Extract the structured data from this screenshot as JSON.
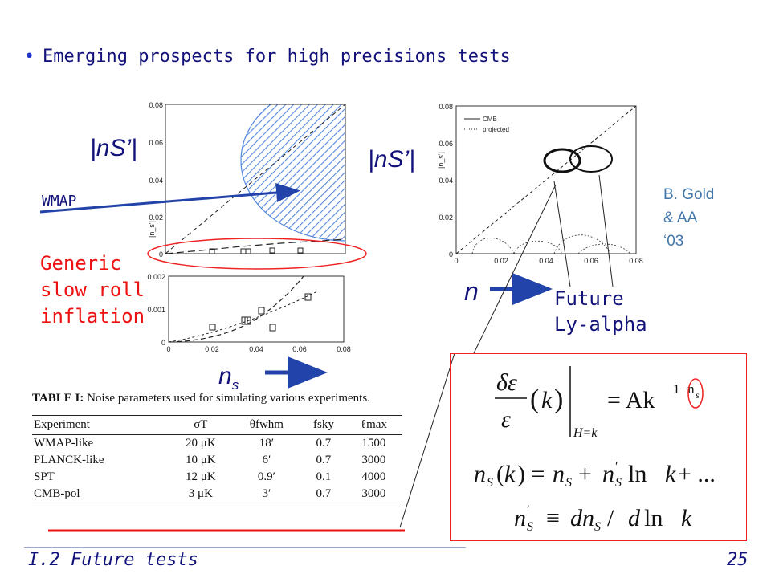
{
  "bullet": {
    "text": "Emerging prospects for high precisions tests"
  },
  "labels": {
    "ns_prime_left": "|nS’|",
    "ns_prime_right": "|nS’|",
    "wmap": "WMAP",
    "generic": [
      "Generic",
      "slow roll",
      "inflation"
    ],
    "credit": [
      "B. Gold",
      "& AA",
      "‘03"
    ],
    "n_arrow": "n",
    "future": [
      "Future",
      "Ly-alpha"
    ],
    "ns_base": "n",
    "ns_sub": "s"
  },
  "plot_left_top": {
    "ticks_x": [],
    "ticks_y": [
      "0.08",
      "0.06",
      "0.04",
      "0.02",
      "0"
    ],
    "ylabel": "|n_s'|"
  },
  "plot_left_bottom": {
    "ticks_x": [
      "0",
      "0.02",
      "0.04",
      "0.06",
      "0.08"
    ],
    "ticks_y": [
      "0.002",
      "0.001",
      "0"
    ]
  },
  "plot_right": {
    "ticks_x": [
      "0",
      "0.02",
      "0.04",
      "0.06",
      "0.08"
    ],
    "ticks_y": [
      "0.08",
      "0.06",
      "0.04",
      "0.02",
      "0"
    ],
    "ylabel": "|n_s'|",
    "legend": [
      "CMB",
      "projected"
    ]
  },
  "table": {
    "caption_bold": "TABLE I:",
    "caption_rest": " Noise parameters used for simulating various experiments.",
    "headers": [
      "Experiment",
      "σT",
      "θfwhm",
      "fsky",
      "ℓmax"
    ],
    "rows": [
      [
        "WMAP-like",
        "20 μK",
        "18′",
        "0.7",
        "1500"
      ],
      [
        "PLANCK-like",
        "10 μK",
        "6′",
        "0.7",
        "3000"
      ],
      [
        "SPT",
        "12 μK",
        "0.9′",
        "0.1",
        "4000"
      ],
      [
        "CMB-pol",
        "3 μK",
        "3′",
        "0.7",
        "3000"
      ]
    ]
  },
  "formulas": {
    "f1_rhs": "= Ak",
    "f1_exp": "1−n",
    "f1_exp_sub": "s",
    "f1_eval": "H=k",
    "f2": "n",
    "f3": "n"
  },
  "footer": {
    "title": "I.2 Future tests",
    "page": "25"
  },
  "colors": {
    "navy": "#12127a",
    "red": "#ee1111",
    "blue_arrow": "#2244aa",
    "hatch": "#5588dd",
    "credit": "#4477aa"
  }
}
